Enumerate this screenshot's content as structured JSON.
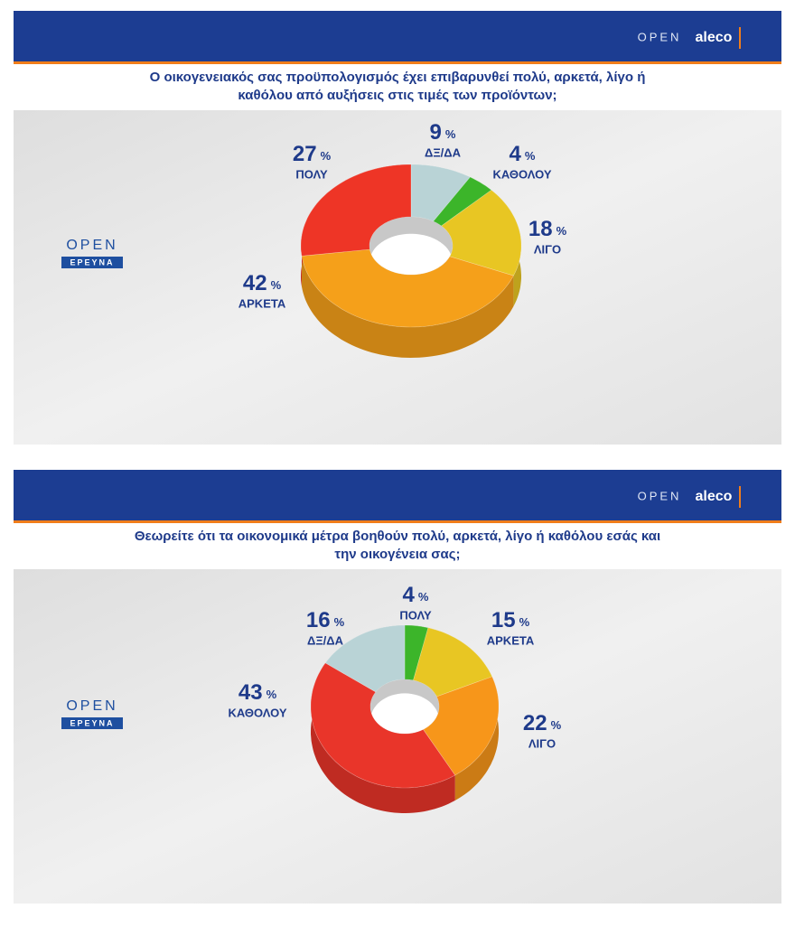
{
  "branding": {
    "header_logo": "OPEN",
    "partner_logo": "aleco",
    "side_logo": "OPEN",
    "side_logo_tag": "ΕΡΕΥΝΑ"
  },
  "chart_data": [
    {
      "type": "pie",
      "donut": true,
      "title": "Ο οικογενειακός σας προϋπολογισμός έχει επιβαρυνθεί πολύ, αρκετά, λίγο ή καθόλου από αυξήσεις στις τιμές των προϊόντων;",
      "unit": "%",
      "categories": [
        "ΔΞ/ΔΑ",
        "ΚΑΘΟΛΟΥ",
        "ΛΙΓΟ",
        "ΑΡΚΕΤΑ",
        "ΠΟΛΥ"
      ],
      "values": [
        9,
        4,
        18,
        42,
        27
      ],
      "colors": [
        "#b9d3d6",
        "#3cb52a",
        "#e8c623",
        "#f5a01a",
        "#ee3526"
      ]
    },
    {
      "type": "pie",
      "donut": true,
      "title": "Θεωρείτε ότι τα οικονομικά μέτρα βοηθούν πολύ, αρκετά, λίγο ή καθόλου εσάς και την οικογένεια σας;",
      "unit": "%",
      "categories": [
        "ΠΟΛΥ",
        "ΑΡΚΕΤΑ",
        "ΛΙΓΟ",
        "ΚΑΘΟΛΟΥ",
        "ΔΞ/ΔΑ"
      ],
      "values": [
        4,
        15,
        22,
        43,
        16
      ],
      "colors": [
        "#3cb52a",
        "#e8c623",
        "#f7961a",
        "#e9352a",
        "#b9d3d6"
      ]
    }
  ]
}
